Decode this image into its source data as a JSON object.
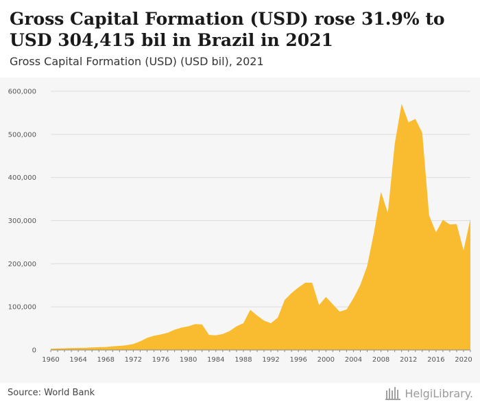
{
  "header": {
    "title": "Gross Capital Formation (USD) rose 31.9% to USD 304,415 bil in Brazil in 2021",
    "subtitle": "Gross Capital Formation (USD) (USD bil), 2021"
  },
  "footer": {
    "source": "Source: World Bank",
    "logo_text": "HelgiLibrary."
  },
  "colors": {
    "area_fill": "#f9bc30",
    "grid": "#dddddd",
    "plot_bg": "#f6f6f6"
  },
  "chart_data": {
    "type": "area",
    "title": "Gross Capital Formation (USD) rose 31.9% to USD 304,415 bil in Brazil in 2021",
    "subtitle": "Gross Capital Formation (USD) (USD bil), 2021",
    "xlabel": "",
    "ylabel": "",
    "ylim": [
      0,
      600000
    ],
    "grid": true,
    "y_ticks": [
      "0",
      "100,000",
      "200,000",
      "300,000",
      "400,000",
      "500,000",
      "600,000"
    ],
    "x_ticks": [
      "1960",
      "1964",
      "1968",
      "1972",
      "1976",
      "1980",
      "1984",
      "1988",
      "1992",
      "1996",
      "2000",
      "2004",
      "2008",
      "2012",
      "2016",
      "2020"
    ],
    "x": [
      1960,
      1961,
      1962,
      1963,
      1964,
      1965,
      1966,
      1967,
      1968,
      1969,
      1970,
      1971,
      1972,
      1973,
      1974,
      1975,
      1976,
      1977,
      1978,
      1979,
      1980,
      1981,
      1982,
      1983,
      1984,
      1985,
      1986,
      1987,
      1988,
      1989,
      1990,
      1991,
      1992,
      1993,
      1994,
      1995,
      1996,
      1997,
      1998,
      1999,
      2000,
      2001,
      2002,
      2003,
      2004,
      2005,
      2006,
      2007,
      2008,
      2009,
      2010,
      2011,
      2012,
      2013,
      2014,
      2015,
      2016,
      2017,
      2018,
      2019,
      2020,
      2021
    ],
    "values": [
      3000,
      3500,
      4000,
      4500,
      4800,
      5000,
      6000,
      6500,
      7000,
      8500,
      9500,
      11000,
      14000,
      20000,
      28000,
      33000,
      36000,
      40000,
      47000,
      52000,
      55000,
      60000,
      59000,
      35000,
      34000,
      37000,
      44000,
      55000,
      62000,
      93000,
      80000,
      68000,
      62000,
      75000,
      116000,
      132000,
      145000,
      156000,
      156000,
      104000,
      123000,
      106000,
      89000,
      94000,
      120000,
      151000,
      195000,
      274000,
      367000,
      318000,
      478000,
      571000,
      528000,
      536000,
      504000,
      312000,
      273000,
      302000,
      291000,
      292000,
      231000,
      304415
    ]
  }
}
